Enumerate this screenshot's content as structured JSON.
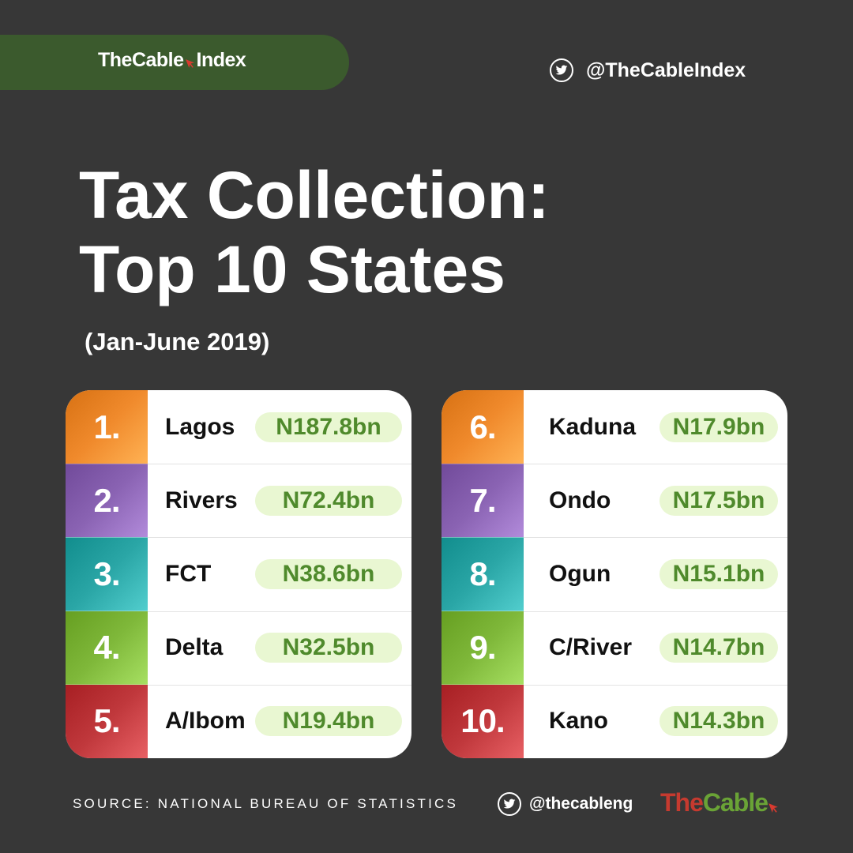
{
  "header": {
    "brand": "TheCable",
    "brand_suffix": "Index",
    "twitter_handle": "@TheCableIndex"
  },
  "title": {
    "line1": "Tax Collection:",
    "line2": "Top 10 States",
    "period": "(Jan-June 2019)"
  },
  "colors": {
    "background": "#373737",
    "brand_green": "#3b5a2d",
    "amount_pill": "#e9f7d2",
    "amount_text": "#4f8a2c",
    "rank_colors": [
      "#f08a2c",
      "#8a63b3",
      "#2aa6a6",
      "#7fb83a",
      "#c0383c"
    ]
  },
  "left_list": [
    {
      "rank": "1.",
      "state": "Lagos",
      "amount": "N187.8bn"
    },
    {
      "rank": "2.",
      "state": "Rivers",
      "amount": "N72.4bn"
    },
    {
      "rank": "3.",
      "state": "FCT",
      "amount": "N38.6bn"
    },
    {
      "rank": "4.",
      "state": "Delta",
      "amount": "N32.5bn"
    },
    {
      "rank": "5.",
      "state": "A/Ibom",
      "amount": "N19.4bn"
    }
  ],
  "right_list": [
    {
      "rank": "6.",
      "state": "Kaduna",
      "amount": "N17.9bn"
    },
    {
      "rank": "7.",
      "state": "Ondo",
      "amount": "N17.5bn"
    },
    {
      "rank": "8.",
      "state": "Ogun",
      "amount": "N15.1bn"
    },
    {
      "rank": "9.",
      "state": "C/River",
      "amount": "N14.7bn"
    },
    {
      "rank": "10.",
      "state": "Kano",
      "amount": "N14.3bn"
    }
  ],
  "footer": {
    "source": "SOURCE: NATIONAL BUREAU OF STATISTICS",
    "twitter_handle": "@thecableng",
    "logo_part1": "The",
    "logo_part2": "Cable"
  }
}
